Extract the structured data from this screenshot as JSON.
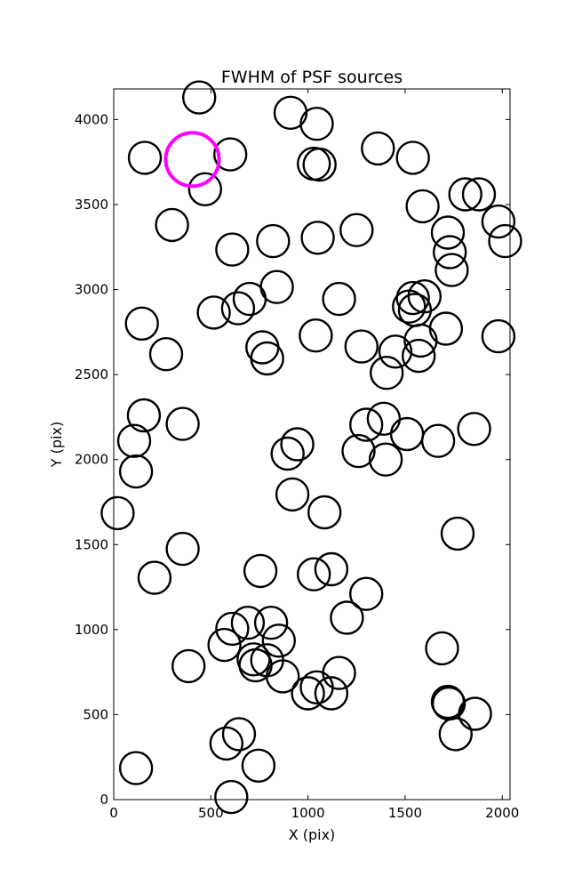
{
  "chart_data": {
    "type": "scatter",
    "title": "FWHM of PSF sources",
    "xlabel": "X (pix)",
    "ylabel": "Y (pix)",
    "xlim": [
      0,
      2040
    ],
    "ylim": [
      0,
      4180
    ],
    "xticks": [
      0,
      500,
      1000,
      1500,
      2000
    ],
    "yticks": [
      0,
      500,
      1000,
      1500,
      2000,
      2500,
      3000,
      3500,
      4000
    ],
    "grid": false,
    "marker": "open-circle",
    "series": [
      {
        "name": "",
        "color": "#000000",
        "points": [
          [
            440,
            4130
          ],
          [
            910,
            4040
          ],
          [
            1045,
            3975
          ],
          [
            160,
            3775
          ],
          [
            600,
            3795
          ],
          [
            1030,
            3740
          ],
          [
            1060,
            3735
          ],
          [
            1360,
            3830
          ],
          [
            1540,
            3775
          ],
          [
            470,
            3590
          ],
          [
            300,
            3380
          ],
          [
            1590,
            3490
          ],
          [
            1810,
            3560
          ],
          [
            1880,
            3560
          ],
          [
            1980,
            3400
          ],
          [
            1250,
            3350
          ],
          [
            610,
            3235
          ],
          [
            820,
            3285
          ],
          [
            1050,
            3305
          ],
          [
            1720,
            3335
          ],
          [
            1730,
            3220
          ],
          [
            2015,
            3285
          ],
          [
            840,
            3015
          ],
          [
            1740,
            3115
          ],
          [
            700,
            2945
          ],
          [
            640,
            2890
          ],
          [
            515,
            2865
          ],
          [
            145,
            2800
          ],
          [
            1160,
            2945
          ],
          [
            1540,
            2950
          ],
          [
            1600,
            2960
          ],
          [
            1520,
            2900
          ],
          [
            1550,
            2880
          ],
          [
            765,
            2660
          ],
          [
            1040,
            2730
          ],
          [
            1710,
            2770
          ],
          [
            1980,
            2725
          ],
          [
            270,
            2620
          ],
          [
            790,
            2595
          ],
          [
            1275,
            2665
          ],
          [
            1450,
            2635
          ],
          [
            1580,
            2700
          ],
          [
            1570,
            2610
          ],
          [
            1405,
            2510
          ],
          [
            155,
            2260
          ],
          [
            355,
            2210
          ],
          [
            105,
            2110
          ],
          [
            1300,
            2205
          ],
          [
            1390,
            2240
          ],
          [
            1510,
            2150
          ],
          [
            1670,
            2110
          ],
          [
            1855,
            2180
          ],
          [
            945,
            2090
          ],
          [
            895,
            2035
          ],
          [
            1260,
            2050
          ],
          [
            1400,
            2000
          ],
          [
            115,
            1930
          ],
          [
            920,
            1795
          ],
          [
            20,
            1685
          ],
          [
            1085,
            1690
          ],
          [
            1770,
            1565
          ],
          [
            355,
            1475
          ],
          [
            210,
            1305
          ],
          [
            755,
            1345
          ],
          [
            1030,
            1325
          ],
          [
            1120,
            1355
          ],
          [
            1300,
            1210
          ],
          [
            1200,
            1070
          ],
          [
            690,
            1040
          ],
          [
            610,
            1005
          ],
          [
            810,
            1040
          ],
          [
            570,
            910
          ],
          [
            850,
            935
          ],
          [
            720,
            825
          ],
          [
            790,
            820
          ],
          [
            730,
            790
          ],
          [
            870,
            725
          ],
          [
            385,
            785
          ],
          [
            1690,
            890
          ],
          [
            1160,
            745
          ],
          [
            1000,
            625
          ],
          [
            1045,
            660
          ],
          [
            1120,
            625
          ],
          [
            1720,
            575
          ],
          [
            1725,
            565
          ],
          [
            1860,
            505
          ],
          [
            1760,
            385
          ],
          [
            580,
            330
          ],
          [
            645,
            385
          ],
          [
            745,
            200
          ],
          [
            115,
            185
          ],
          [
            605,
            15
          ]
        ]
      },
      {
        "name": "",
        "color": "#ff00ff",
        "points": [
          [
            405,
            3765
          ]
        ]
      }
    ]
  }
}
